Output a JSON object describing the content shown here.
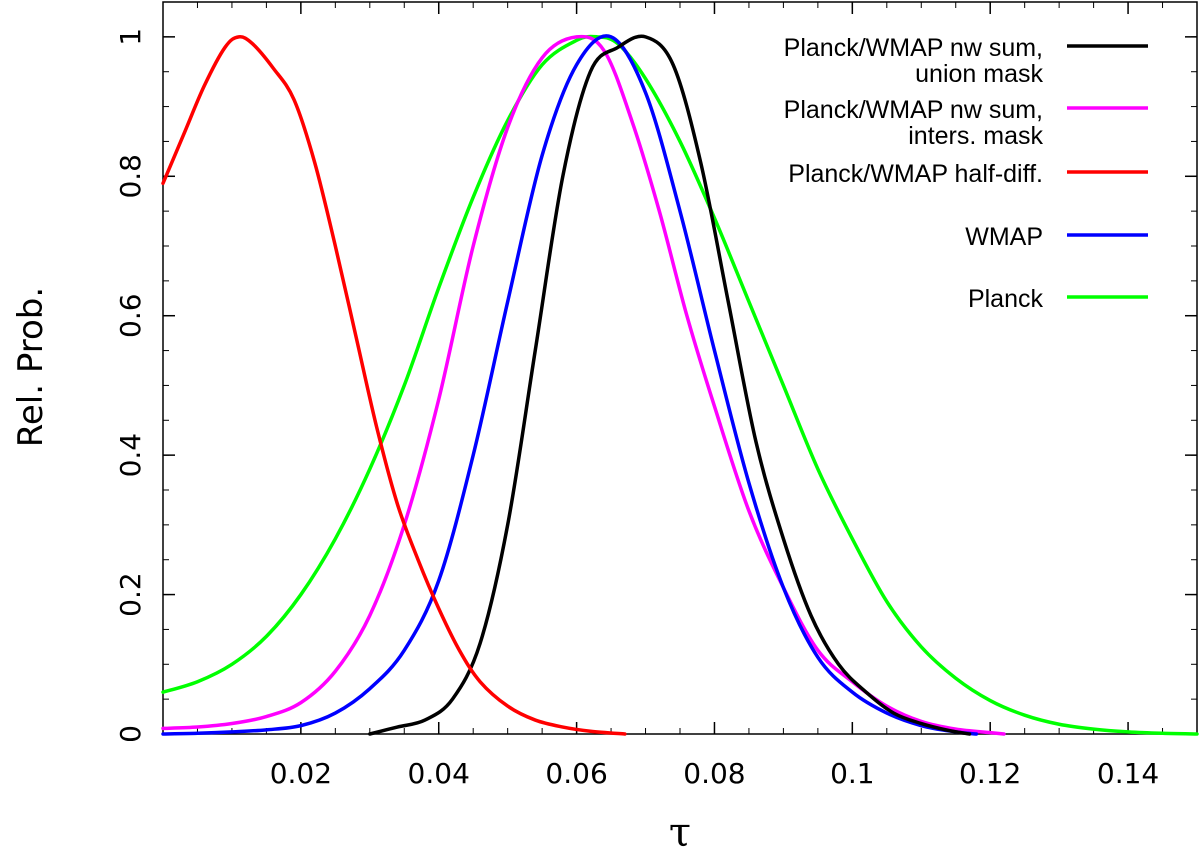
{
  "chart_data": {
    "type": "line",
    "title": "",
    "xlabel": "τ",
    "ylabel": "Rel. Prob.",
    "xlim": [
      0,
      0.15
    ],
    "ylim": [
      0,
      1.05
    ],
    "xticks": [
      0.02,
      0.04,
      0.06,
      0.08,
      0.1,
      0.12,
      0.14
    ],
    "xtick_labels": [
      "0.02",
      "0.04",
      "0.06",
      "0.08",
      "0.1",
      "0.12",
      "0.14"
    ],
    "yticks": [
      0,
      0.2,
      0.4,
      0.6,
      0.8,
      1
    ],
    "ytick_labels": [
      "0",
      "0.2",
      "0.4",
      "0.6",
      "0.8",
      "1"
    ],
    "legend_position": "top-right",
    "series": [
      {
        "name": "Planck/WMAP nw sum, union mask",
        "label_lines": [
          "Planck/WMAP nw sum,",
          "union mask"
        ],
        "color": "#000000",
        "x": [
          0.03,
          0.034,
          0.038,
          0.042,
          0.046,
          0.05,
          0.054,
          0.058,
          0.062,
          0.066,
          0.07,
          0.074,
          0.078,
          0.082,
          0.086,
          0.09,
          0.094,
          0.098,
          0.102,
          0.106,
          0.11,
          0.114,
          0.117
        ],
        "values": [
          0.0,
          0.01,
          0.02,
          0.05,
          0.13,
          0.3,
          0.55,
          0.8,
          0.95,
          0.985,
          1.0,
          0.96,
          0.82,
          0.62,
          0.42,
          0.28,
          0.17,
          0.1,
          0.06,
          0.03,
          0.015,
          0.005,
          0.0
        ]
      },
      {
        "name": "Planck/WMAP nw sum, inters. mask",
        "label_lines": [
          "Planck/WMAP nw sum,",
          "inters. mask"
        ],
        "color": "#ff00ff",
        "x": [
          0.0,
          0.005,
          0.01,
          0.015,
          0.02,
          0.025,
          0.03,
          0.035,
          0.04,
          0.045,
          0.05,
          0.055,
          0.06,
          0.064,
          0.068,
          0.072,
          0.076,
          0.08,
          0.085,
          0.09,
          0.095,
          0.1,
          0.105,
          0.11,
          0.115,
          0.12,
          0.122
        ],
        "values": [
          0.008,
          0.01,
          0.015,
          0.025,
          0.045,
          0.09,
          0.17,
          0.3,
          0.48,
          0.7,
          0.87,
          0.97,
          1.0,
          0.98,
          0.88,
          0.75,
          0.6,
          0.47,
          0.32,
          0.21,
          0.12,
          0.075,
          0.04,
          0.018,
          0.007,
          0.002,
          0.0
        ]
      },
      {
        "name": "Planck/WMAP half-diff.",
        "label_lines": [
          "Planck/WMAP half-diff."
        ],
        "color": "#ff0000",
        "x": [
          0.0,
          0.003,
          0.006,
          0.009,
          0.011,
          0.013,
          0.016,
          0.019,
          0.022,
          0.025,
          0.028,
          0.031,
          0.034,
          0.037,
          0.04,
          0.043,
          0.046,
          0.05,
          0.054,
          0.058,
          0.062,
          0.067
        ],
        "values": [
          0.79,
          0.86,
          0.93,
          0.985,
          1.0,
          0.99,
          0.955,
          0.91,
          0.82,
          0.7,
          0.57,
          0.44,
          0.33,
          0.25,
          0.18,
          0.12,
          0.075,
          0.04,
          0.02,
          0.01,
          0.004,
          0.0
        ]
      },
      {
        "name": "WMAP",
        "label_lines": [
          "WMAP"
        ],
        "color": "#0000ff",
        "x": [
          0.0,
          0.005,
          0.01,
          0.015,
          0.02,
          0.025,
          0.03,
          0.035,
          0.04,
          0.045,
          0.05,
          0.055,
          0.06,
          0.065,
          0.07,
          0.075,
          0.08,
          0.085,
          0.09,
          0.095,
          0.1,
          0.105,
          0.11,
          0.115,
          0.118
        ],
        "values": [
          0.0,
          0.001,
          0.003,
          0.006,
          0.012,
          0.03,
          0.065,
          0.12,
          0.22,
          0.4,
          0.62,
          0.83,
          0.96,
          1.0,
          0.92,
          0.75,
          0.55,
          0.36,
          0.21,
          0.11,
          0.06,
          0.03,
          0.012,
          0.003,
          0.0
        ]
      },
      {
        "name": "Planck",
        "label_lines": [
          "Planck"
        ],
        "color": "#00ff00",
        "x": [
          0.0,
          0.005,
          0.01,
          0.015,
          0.02,
          0.025,
          0.03,
          0.035,
          0.04,
          0.045,
          0.05,
          0.055,
          0.06,
          0.063,
          0.066,
          0.07,
          0.075,
          0.08,
          0.085,
          0.09,
          0.095,
          0.1,
          0.105,
          0.11,
          0.115,
          0.12,
          0.125,
          0.13,
          0.135,
          0.14,
          0.145,
          0.15
        ],
        "values": [
          0.06,
          0.075,
          0.1,
          0.14,
          0.2,
          0.28,
          0.38,
          0.5,
          0.64,
          0.77,
          0.88,
          0.96,
          0.995,
          1.0,
          0.99,
          0.94,
          0.85,
          0.74,
          0.62,
          0.5,
          0.38,
          0.28,
          0.19,
          0.125,
          0.08,
          0.048,
          0.027,
          0.014,
          0.007,
          0.003,
          0.001,
          0.0
        ]
      }
    ]
  }
}
